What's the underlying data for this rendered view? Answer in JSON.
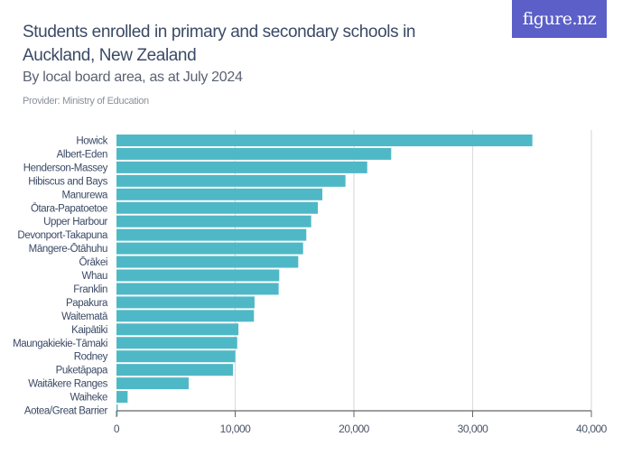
{
  "header": {
    "title": "Students enrolled in primary and secondary schools in Auckland, New Zealand",
    "subtitle": "By local board area, as at July 2024",
    "provider": "Provider: Ministry of Education",
    "logo_text": "figure.nz"
  },
  "colors": {
    "bar": "#4fb8c6",
    "grid": "#dddddd",
    "axis": "#666666",
    "label": "#3b4a66",
    "logo_bg": "#5b5fc7"
  },
  "chart_data": {
    "type": "bar",
    "orientation": "horizontal",
    "title": "Students enrolled in primary and secondary schools in Auckland, New Zealand",
    "subtitle": "By local board area, as at July 2024",
    "xlabel": "",
    "ylabel": "",
    "xlim": [
      0,
      40000
    ],
    "xticks": [
      0,
      10000,
      20000,
      30000,
      40000
    ],
    "xtick_labels": [
      "0",
      "10,000",
      "20,000",
      "30,000",
      "40,000"
    ],
    "grid": true,
    "categories": [
      "Howick",
      "Albert-Eden",
      "Henderson-Massey",
      "Hibiscus and Bays",
      "Manurewa",
      "Ōtara-Papatoetoe",
      "Upper Harbour",
      "Devonport-Takapuna",
      "Māngere-Ōtāhuhu",
      "Ōrākei",
      "Whau",
      "Franklin",
      "Papakura",
      "Waitematā",
      "Kaipātiki",
      "Maungakiekie-Tāmaki",
      "Rodney",
      "Puketāpapa",
      "Waitākere Ranges",
      "Waiheke",
      "Aotea/Great Barrier"
    ],
    "values": [
      35030,
      23140,
      21120,
      19290,
      17340,
      16960,
      16400,
      15990,
      15720,
      15310,
      13710,
      13660,
      11630,
      11580,
      10270,
      10170,
      10010,
      9810,
      6080,
      940,
      100
    ]
  }
}
